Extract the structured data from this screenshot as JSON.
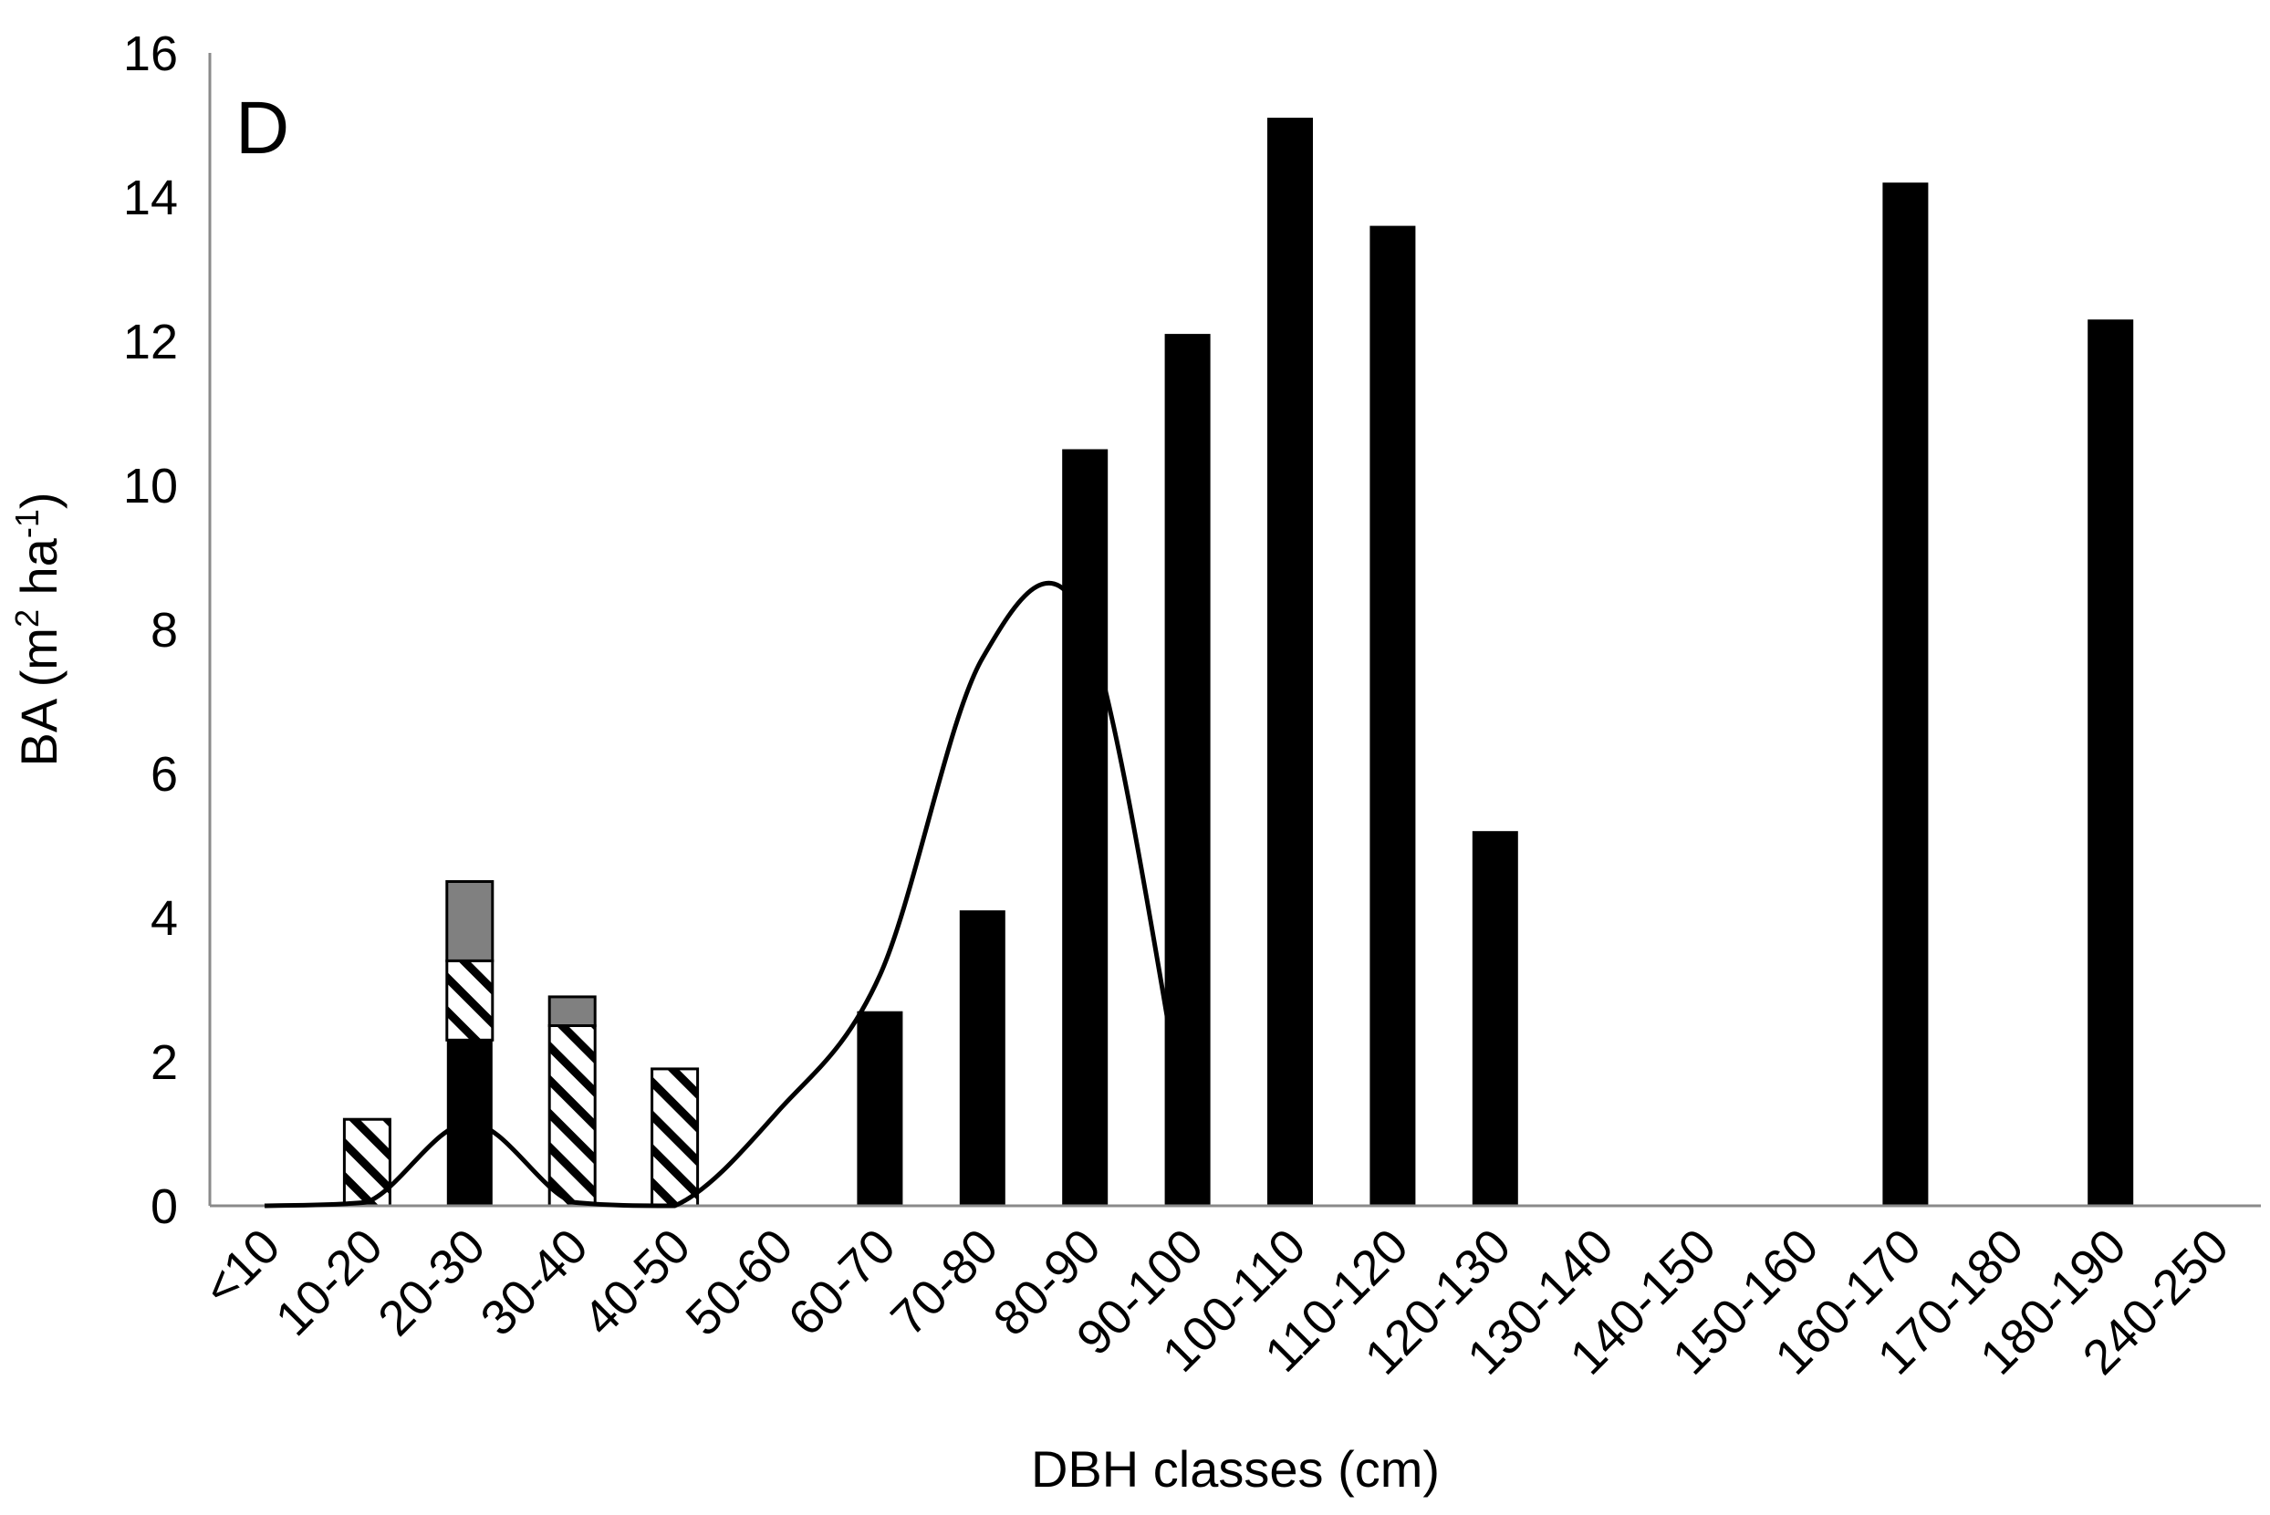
{
  "chart_data": {
    "type": "bar",
    "stacked": true,
    "panel_label": "D",
    "xlabel": "DBH classes (cm)",
    "ylabel": "BA (m² ha⁻¹)",
    "ylabel_parts": {
      "pre": "BA (m",
      "sup1": "2",
      "mid": " ha",
      "sup2": "-1",
      "post": ")"
    },
    "ylim": [
      0,
      16
    ],
    "yticks": [
      "0",
      "2",
      "4",
      "6",
      "8",
      "10",
      "12",
      "14",
      "16"
    ],
    "grid": false,
    "legend": "none",
    "categories": [
      "<10",
      "10-20",
      "20-30",
      "30-40",
      "40-50",
      "50-60",
      "60-70",
      "70-80",
      "80-90",
      "90-100",
      "100-110",
      "110-120",
      "120-130",
      "130-140",
      "140-150",
      "150-160",
      "160-170",
      "170-180",
      "180-190",
      "240-250"
    ],
    "series": [
      {
        "style": "solid-black",
        "color": "#000000",
        "values": [
          0,
          0,
          2.3,
          0,
          0,
          0,
          2.7,
          4.1,
          10.5,
          12.1,
          15.1,
          13.6,
          5.2,
          0,
          0,
          0,
          14.2,
          0,
          12.3,
          0
        ]
      },
      {
        "style": "hatched",
        "color": "#ffffff",
        "values": [
          0,
          1.2,
          1.1,
          2.5,
          1.9,
          0,
          0,
          0,
          0,
          0,
          0,
          0,
          0,
          0,
          0,
          0,
          0,
          0,
          0,
          0
        ]
      },
      {
        "style": "solid-gray",
        "color": "#808080",
        "values": [
          0,
          0,
          1.1,
          0.4,
          0,
          0,
          0,
          0,
          0,
          0,
          0,
          0,
          0,
          0,
          0,
          0,
          0,
          0,
          0,
          0
        ]
      }
    ],
    "line": {
      "style": "smooth-black",
      "x_index": [
        0,
        1,
        2,
        3,
        4,
        5,
        6,
        7,
        8,
        9
      ],
      "values": [
        0,
        0.05,
        1.15,
        0.05,
        0,
        1.3,
        3.2,
        7.6,
        8.1,
        1.0
      ]
    }
  }
}
